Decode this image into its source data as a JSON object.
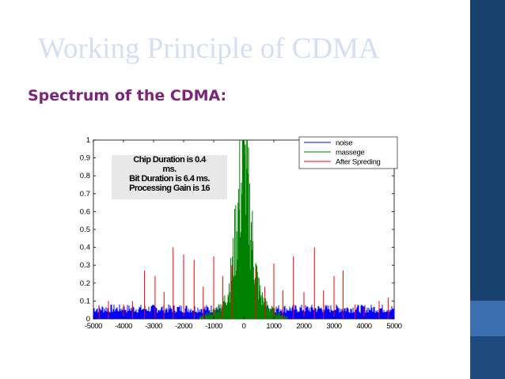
{
  "slide": {
    "title": "Working Principle of CDMA",
    "subtitle": "Spectrum of the CDMA:",
    "colors": {
      "title": "#d4e0f2",
      "subtitle": "#7b2579",
      "sidebar": "#19416f",
      "sidebar_accent": "#3a6fb0"
    }
  },
  "annotation": {
    "lines": [
      "Chip Duration is 0.4",
      "ms.",
      "Bit Duration is 6.4 ms.",
      "Processing Gain is 16"
    ]
  },
  "chart_data": {
    "type": "line",
    "title": "",
    "xlabel": "",
    "ylabel": "",
    "xlim": [
      -5000,
      5000
    ],
    "ylim": [
      0,
      1
    ],
    "x_ticks": [
      -5000,
      -4000,
      -3000,
      -2000,
      -1000,
      0,
      1000,
      2000,
      3000,
      4000,
      5000
    ],
    "x_tick_labels": [
      "-5000",
      "-4000",
      "-3000",
      "-2000",
      "-1000",
      "0",
      "1000",
      "2000",
      "3000",
      "4000",
      "5000"
    ],
    "y_ticks": [
      0,
      0.1,
      0.2,
      0.3,
      0.4,
      0.5,
      0.6,
      0.7,
      0.8,
      0.9,
      1
    ],
    "y_tick_labels": [
      "0",
      "0.1",
      "0.2",
      "0.3",
      "0.4",
      "0.5",
      "0.6",
      "0.7",
      "0.8",
      "0.9",
      "1"
    ],
    "grid": false,
    "legend_position": "top-right",
    "series": [
      {
        "name": "noise",
        "color": "#0000ff",
        "baseline": 0.06,
        "description_shape": "flat noise floor"
      },
      {
        "name": "massege",
        "color": "#008000",
        "peak": 1.0,
        "center": 0
      },
      {
        "name": "After Spreding",
        "color": "#ff0000",
        "spikes": [
          {
            "x": -4800,
            "y": 0.06
          },
          {
            "x": -4500,
            "y": 0.1
          },
          {
            "x": -4000,
            "y": 0.08
          },
          {
            "x": -3700,
            "y": 0.1
          },
          {
            "x": -3300,
            "y": 0.27
          },
          {
            "x": -2950,
            "y": 0.24
          },
          {
            "x": -2650,
            "y": 0.15
          },
          {
            "x": -2350,
            "y": 0.4
          },
          {
            "x": -2000,
            "y": 0.36
          },
          {
            "x": -1650,
            "y": 0.33
          },
          {
            "x": -1350,
            "y": 0.18
          },
          {
            "x": -1000,
            "y": 0.35
          },
          {
            "x": -700,
            "y": 0.24
          },
          {
            "x": -400,
            "y": 0.3
          },
          {
            "x": 400,
            "y": 0.28
          },
          {
            "x": 700,
            "y": 0.18
          },
          {
            "x": 1000,
            "y": 0.31
          },
          {
            "x": 1300,
            "y": 0.16
          },
          {
            "x": 1650,
            "y": 0.35
          },
          {
            "x": 2000,
            "y": 0.15
          },
          {
            "x": 2350,
            "y": 0.4
          },
          {
            "x": 2650,
            "y": 0.16
          },
          {
            "x": 3000,
            "y": 0.24
          },
          {
            "x": 3300,
            "y": 0.27
          },
          {
            "x": 3700,
            "y": 0.08
          },
          {
            "x": 4000,
            "y": 0.07
          },
          {
            "x": 4500,
            "y": 0.1
          },
          {
            "x": 4800,
            "y": 0.12
          }
        ]
      }
    ]
  }
}
